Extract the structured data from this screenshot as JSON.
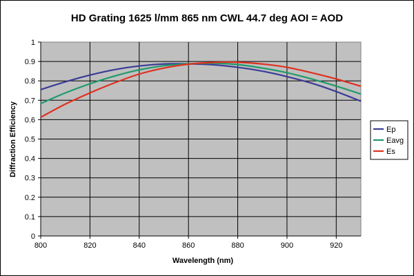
{
  "chart_data": {
    "type": "line",
    "title": "HD Grating 1625 l/mm 865 nm CWL 44.7 deg AOI = AOD",
    "xlabel": "Wavelength (nm)",
    "ylabel": "Diffraction Efficiency",
    "xlim": [
      800,
      930
    ],
    "ylim": [
      0,
      1
    ],
    "xticks": [
      "800",
      "820",
      "840",
      "860",
      "880",
      "900",
      "920"
    ],
    "yticks": [
      "0",
      "0.1",
      "0.2",
      "0.3",
      "0.4",
      "0.5",
      "0.6",
      "0.7",
      "0.8",
      "0.9",
      "1"
    ],
    "grid": true,
    "plot_background": "#c0c0c0",
    "legend_position": "right",
    "x": [
      800,
      810,
      820,
      830,
      840,
      850,
      860,
      870,
      880,
      890,
      900,
      910,
      920,
      930
    ],
    "series": [
      {
        "name": "Ep",
        "color": "#3b3b98",
        "values": [
          0.755,
          0.795,
          0.83,
          0.858,
          0.877,
          0.887,
          0.888,
          0.883,
          0.87,
          0.85,
          0.822,
          0.788,
          0.745,
          0.695
        ]
      },
      {
        "name": "Eavg",
        "color": "#1f9a6a",
        "values": [
          0.683,
          0.738,
          0.785,
          0.825,
          0.857,
          0.878,
          0.888,
          0.891,
          0.884,
          0.866,
          0.842,
          0.81,
          0.773,
          0.732
        ]
      },
      {
        "name": "Es",
        "color": "#e0301e",
        "values": [
          0.612,
          0.68,
          0.738,
          0.79,
          0.835,
          0.866,
          0.886,
          0.895,
          0.896,
          0.887,
          0.87,
          0.842,
          0.81,
          0.772
        ]
      }
    ]
  }
}
